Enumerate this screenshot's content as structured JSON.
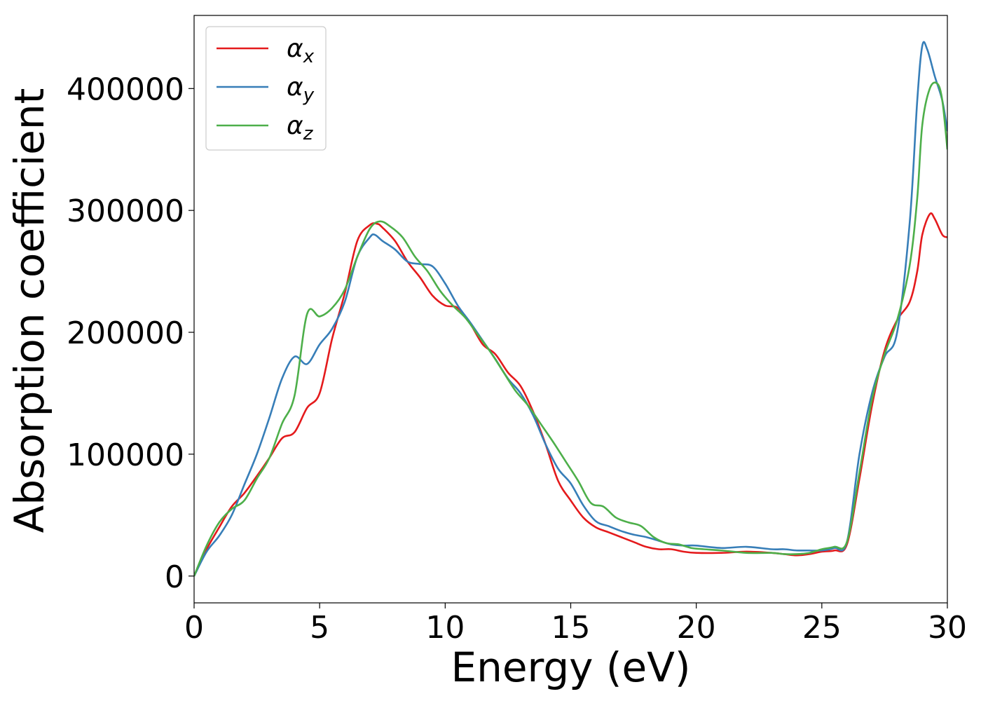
{
  "chart_data": {
    "type": "line",
    "xlabel": "Energy (eV)",
    "ylabel": "Absorption coefficient",
    "xlim": [
      0,
      30
    ],
    "ylim": [
      -22000,
      460000
    ],
    "x_ticks": [
      "0",
      "5",
      "10",
      "15",
      "20",
      "25",
      "30"
    ],
    "x_tick_values": [
      0,
      5,
      10,
      15,
      20,
      25,
      30
    ],
    "y_ticks": [
      "0",
      "100000",
      "200000",
      "300000",
      "400000"
    ],
    "y_tick_values": [
      0,
      100000,
      200000,
      300000,
      400000
    ],
    "grid": false,
    "legend_placement": "top-left",
    "series": [
      {
        "name": "αx",
        "symbol": "α",
        "subscript": "x",
        "color": "#e41a1c",
        "points": [
          [
            0,
            0
          ],
          [
            0.5,
            22000
          ],
          [
            1,
            40000
          ],
          [
            1.5,
            57000
          ],
          [
            2,
            68000
          ],
          [
            2.5,
            82000
          ],
          [
            3,
            97000
          ],
          [
            3.5,
            113000
          ],
          [
            4,
            118000
          ],
          [
            4.5,
            138000
          ],
          [
            5,
            150000
          ],
          [
            5.5,
            195000
          ],
          [
            6,
            232000
          ],
          [
            6.5,
            275000
          ],
          [
            7,
            288000
          ],
          [
            7.3,
            289000
          ],
          [
            7.5,
            286000
          ],
          [
            8,
            275000
          ],
          [
            8.5,
            258000
          ],
          [
            9,
            245000
          ],
          [
            9.5,
            230000
          ],
          [
            10,
            222000
          ],
          [
            10.5,
            220000
          ],
          [
            11,
            207000
          ],
          [
            11.5,
            190000
          ],
          [
            12,
            182000
          ],
          [
            12.5,
            167000
          ],
          [
            13,
            156000
          ],
          [
            13.5,
            135000
          ],
          [
            14,
            108000
          ],
          [
            14.5,
            78000
          ],
          [
            15,
            62000
          ],
          [
            15.5,
            48000
          ],
          [
            16,
            40000
          ],
          [
            16.5,
            36000
          ],
          [
            17,
            32000
          ],
          [
            17.5,
            28000
          ],
          [
            18,
            24000
          ],
          [
            18.5,
            22000
          ],
          [
            19,
            22000
          ],
          [
            19.5,
            20000
          ],
          [
            20,
            19000
          ],
          [
            21,
            19000
          ],
          [
            22,
            20000
          ],
          [
            23,
            19000
          ],
          [
            23.5,
            18000
          ],
          [
            24,
            17000
          ],
          [
            24.5,
            18000
          ],
          [
            25,
            20000
          ],
          [
            25.5,
            21000
          ],
          [
            26,
            26000
          ],
          [
            26.5,
            80000
          ],
          [
            27,
            140000
          ],
          [
            27.5,
            185000
          ],
          [
            28,
            210000
          ],
          [
            28.5,
            225000
          ],
          [
            28.8,
            250000
          ],
          [
            29,
            280000
          ],
          [
            29.3,
            297000
          ],
          [
            29.5,
            293000
          ],
          [
            29.8,
            280000
          ],
          [
            30,
            278000
          ]
        ]
      },
      {
        "name": "αy",
        "symbol": "α",
        "subscript": "y",
        "color": "#377eb8",
        "points": [
          [
            0,
            0
          ],
          [
            0.5,
            20000
          ],
          [
            1,
            33000
          ],
          [
            1.5,
            50000
          ],
          [
            2,
            75000
          ],
          [
            2.5,
            100000
          ],
          [
            3,
            130000
          ],
          [
            3.5,
            162000
          ],
          [
            4,
            180000
          ],
          [
            4.5,
            174000
          ],
          [
            5,
            190000
          ],
          [
            5.5,
            203000
          ],
          [
            6,
            225000
          ],
          [
            6.5,
            262000
          ],
          [
            7,
            278000
          ],
          [
            7.2,
            280000
          ],
          [
            7.5,
            275000
          ],
          [
            8,
            268000
          ],
          [
            8.5,
            258000
          ],
          [
            9,
            256000
          ],
          [
            9.5,
            254000
          ],
          [
            10,
            240000
          ],
          [
            10.5,
            222000
          ],
          [
            11,
            208000
          ],
          [
            11.5,
            193000
          ],
          [
            12,
            178000
          ],
          [
            12.5,
            162000
          ],
          [
            13,
            150000
          ],
          [
            13.5,
            132000
          ],
          [
            14,
            108000
          ],
          [
            14.5,
            88000
          ],
          [
            15,
            76000
          ],
          [
            15.5,
            58000
          ],
          [
            16,
            45000
          ],
          [
            16.5,
            41000
          ],
          [
            17,
            37000
          ],
          [
            17.5,
            34000
          ],
          [
            18,
            32000
          ],
          [
            18.5,
            29000
          ],
          [
            19,
            26000
          ],
          [
            19.5,
            25000
          ],
          [
            20,
            25000
          ],
          [
            21,
            23000
          ],
          [
            22,
            24000
          ],
          [
            23,
            22000
          ],
          [
            23.5,
            22000
          ],
          [
            24,
            21000
          ],
          [
            24.5,
            21000
          ],
          [
            25,
            21000
          ],
          [
            25.5,
            23000
          ],
          [
            26,
            28000
          ],
          [
            26.5,
            100000
          ],
          [
            27,
            150000
          ],
          [
            27.5,
            180000
          ],
          [
            28,
            200000
          ],
          [
            28.5,
            290000
          ],
          [
            28.8,
            390000
          ],
          [
            29,
            435000
          ],
          [
            29.2,
            432000
          ],
          [
            29.5,
            410000
          ],
          [
            29.8,
            390000
          ],
          [
            30,
            365000
          ]
        ]
      },
      {
        "name": "αz",
        "symbol": "α",
        "subscript": "z",
        "color": "#4daf4a",
        "points": [
          [
            0,
            0
          ],
          [
            0.5,
            25000
          ],
          [
            1,
            44000
          ],
          [
            1.5,
            55000
          ],
          [
            2,
            62000
          ],
          [
            2.5,
            80000
          ],
          [
            3,
            97000
          ],
          [
            3.5,
            125000
          ],
          [
            4,
            148000
          ],
          [
            4.5,
            215000
          ],
          [
            5,
            213000
          ],
          [
            5.5,
            220000
          ],
          [
            6,
            235000
          ],
          [
            6.5,
            262000
          ],
          [
            7,
            285000
          ],
          [
            7.4,
            291000
          ],
          [
            7.8,
            287000
          ],
          [
            8.3,
            278000
          ],
          [
            8.8,
            262000
          ],
          [
            9.3,
            250000
          ],
          [
            9.8,
            234000
          ],
          [
            10.3,
            222000
          ],
          [
            10.8,
            212000
          ],
          [
            11.3,
            198000
          ],
          [
            11.8,
            184000
          ],
          [
            12.3,
            168000
          ],
          [
            12.8,
            152000
          ],
          [
            13.3,
            140000
          ],
          [
            13.8,
            125000
          ],
          [
            14.3,
            110000
          ],
          [
            14.8,
            94000
          ],
          [
            15.3,
            78000
          ],
          [
            15.8,
            60000
          ],
          [
            16.3,
            57000
          ],
          [
            16.8,
            48000
          ],
          [
            17.3,
            44000
          ],
          [
            17.8,
            41000
          ],
          [
            18.3,
            32000
          ],
          [
            18.8,
            27000
          ],
          [
            19.3,
            26000
          ],
          [
            19.8,
            23000
          ],
          [
            20.3,
            22000
          ],
          [
            21,
            21000
          ],
          [
            22,
            19000
          ],
          [
            23,
            19000
          ],
          [
            23.5,
            18000
          ],
          [
            24,
            18000
          ],
          [
            24.5,
            19000
          ],
          [
            25,
            22000
          ],
          [
            25.5,
            24000
          ],
          [
            26,
            28000
          ],
          [
            26.5,
            85000
          ],
          [
            27,
            145000
          ],
          [
            27.5,
            182000
          ],
          [
            28,
            210000
          ],
          [
            28.5,
            255000
          ],
          [
            28.8,
            310000
          ],
          [
            29,
            370000
          ],
          [
            29.3,
            400000
          ],
          [
            29.6,
            404000
          ],
          [
            29.8,
            390000
          ],
          [
            30,
            350000
          ]
        ]
      }
    ]
  }
}
